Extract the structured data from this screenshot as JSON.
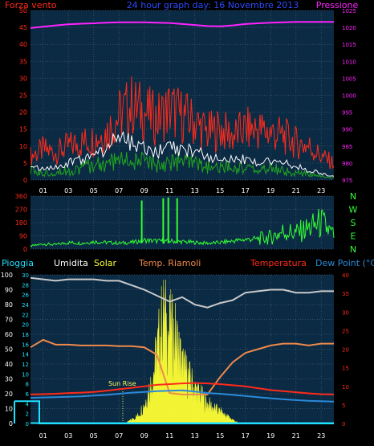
{
  "header": {
    "left_label": "Forza vento",
    "center_label": "24 hour graph day: 16 Novembre 2013",
    "right_label": "Pressione"
  },
  "colors": {
    "background": "#000000",
    "panel": "#0b2a44",
    "grid": "#3b4f63",
    "wind_speed": "#ff2a1a",
    "wind_gust_line": "#ffffff",
    "wind_avg": "#1fa51f",
    "pressure": "#ff22ff",
    "wind_dir": "#33ff33",
    "temperature": "#ff2a1a",
    "dew_point": "#2a8ad8",
    "humidity": "#c9c9c9",
    "room_temp": "#f08a4b",
    "rain": "#20e0ff",
    "solar": "#ffff33",
    "sunrise": "#ffff66",
    "left_axis_text": "#ff2a1a",
    "right_axis_text": "#ff22ff",
    "hour_text": "#ffffff"
  },
  "chart_data": [
    {
      "type": "line",
      "name": "wind",
      "title": "24 hour graph day: 16 Novembre 2013",
      "x_ticks": [
        "01",
        "03",
        "05",
        "07",
        "09",
        "11",
        "13",
        "15",
        "17",
        "19",
        "21",
        "23"
      ],
      "ylim_left": [
        0,
        50
      ],
      "left_ticks": [
        "0",
        "5",
        "10",
        "15",
        "20",
        "25",
        "30",
        "35",
        "40",
        "45",
        "50"
      ],
      "ylim_right": [
        975,
        1025
      ],
      "right_ticks": [
        "975",
        "980",
        "985",
        "990",
        "995",
        "1000",
        "1005",
        "1010",
        "1015",
        "1020",
        "1025"
      ],
      "series": [
        {
          "name": "Forza vento",
          "hours": [
            0,
            1,
            2,
            3,
            4,
            5,
            6,
            7,
            8,
            9,
            10,
            11,
            12,
            13,
            14,
            15,
            16,
            17,
            18,
            19,
            20,
            21,
            22,
            23,
            24
          ],
          "values": [
            7,
            9,
            8,
            10,
            11,
            12,
            14,
            19,
            22,
            20,
            18,
            21,
            19,
            17,
            14,
            15,
            13,
            15,
            15,
            14,
            13,
            11,
            10,
            7,
            5
          ]
        },
        {
          "name": "wind_gust_trace",
          "hours": [
            0,
            1,
            2,
            3,
            4,
            5,
            6,
            7,
            8,
            9,
            10,
            11,
            12,
            13,
            14,
            15,
            16,
            17,
            18,
            19,
            20,
            21,
            22,
            23,
            24
          ],
          "values": [
            5,
            3,
            4,
            5,
            6,
            7,
            9,
            13,
            11,
            9,
            8,
            10,
            9,
            9,
            7,
            6,
            6,
            6,
            5,
            6,
            5,
            4,
            3,
            2,
            1
          ]
        },
        {
          "name": "wind_avg",
          "hours": [
            0,
            1,
            2,
            3,
            4,
            5,
            6,
            7,
            8,
            9,
            10,
            11,
            12,
            13,
            14,
            15,
            16,
            17,
            18,
            19,
            20,
            21,
            22,
            23,
            24
          ],
          "values": [
            3,
            2,
            3,
            3,
            4,
            5,
            5,
            7,
            6,
            6,
            5,
            6,
            6,
            5,
            4,
            4,
            4,
            4,
            3,
            4,
            3,
            2,
            2,
            1,
            1
          ]
        },
        {
          "name": "Pressione",
          "hours": [
            0,
            1,
            2,
            3,
            4,
            5,
            6,
            7,
            8,
            9,
            10,
            11,
            12,
            13,
            14,
            15,
            16,
            17,
            18,
            19,
            20,
            21,
            22,
            23,
            24
          ],
          "values": [
            1019.8,
            1020.2,
            1020.6,
            1020.9,
            1021.1,
            1021.2,
            1021.4,
            1021.5,
            1021.5,
            1021.5,
            1021.4,
            1021.3,
            1021.0,
            1020.7,
            1020.4,
            1020.3,
            1020.6,
            1021.0,
            1021.2,
            1021.4,
            1021.5,
            1021.6,
            1021.6,
            1021.6,
            1021.6
          ]
        }
      ]
    },
    {
      "type": "line",
      "name": "wind_direction",
      "ylim": [
        0,
        360
      ],
      "left_ticks": [
        "0",
        "90",
        "180",
        "270",
        "360"
      ],
      "right_ticks": [
        "N",
        "W",
        "S",
        "E",
        "N"
      ],
      "series": [
        {
          "name": "direction",
          "hours": [
            0,
            1,
            2,
            3,
            4,
            5,
            6,
            7,
            8,
            9,
            10,
            11,
            12,
            13,
            14,
            15,
            16,
            17,
            18,
            19,
            20,
            21,
            22,
            23,
            24
          ],
          "values": [
            20,
            35,
            30,
            45,
            40,
            50,
            45,
            40,
            45,
            60,
            55,
            55,
            50,
            45,
            40,
            45,
            55,
            65,
            70,
            80,
            120,
            110,
            140,
            180,
            90
          ]
        }
      ],
      "spikes": [
        {
          "hour": 8.8,
          "value": 330
        },
        {
          "hour": 10.5,
          "value": 345
        },
        {
          "hour": 10.9,
          "value": 350
        },
        {
          "hour": 11.6,
          "value": 345
        }
      ]
    },
    {
      "type": "line",
      "name": "temperature_humidity_rain",
      "labels": {
        "rain": "Pioggia",
        "humidity": "Umidita",
        "solar": "Solar",
        "room_temp": "Temp. Riamoli",
        "temperature": "Temperatura",
        "dew_point": "Dew Point (°C)",
        "sunrise": "Sun Rise"
      },
      "x_ticks": [
        "01",
        "03",
        "05",
        "07",
        "09",
        "11",
        "13",
        "15",
        "17",
        "19",
        "21",
        "23"
      ],
      "ylim_left_outer": [
        0,
        100
      ],
      "left_outer_ticks": [
        "0",
        "10",
        "20",
        "30",
        "40",
        "50",
        "60",
        "70",
        "80",
        "90",
        "100"
      ],
      "ylim_left_inner": [
        0,
        30
      ],
      "left_inner_ticks": [
        "0",
        "2",
        "4",
        "6",
        "8",
        "10",
        "12",
        "14",
        "16",
        "18",
        "20",
        "22",
        "24",
        "26",
        "28",
        "30"
      ],
      "ylim_right": [
        0,
        40
      ],
      "right_ticks": [
        "0",
        "5",
        "10",
        "15",
        "20",
        "25",
        "30",
        "35",
        "40"
      ],
      "series": [
        {
          "name": "Umidita",
          "hours": [
            0,
            1,
            2,
            3,
            4,
            5,
            6,
            7,
            8,
            9,
            10,
            11,
            12,
            13,
            14,
            15,
            16,
            17,
            18,
            19,
            20,
            21,
            22,
            23,
            24
          ],
          "values": [
            98,
            97,
            96,
            97,
            97,
            97,
            96,
            96,
            93,
            90,
            86,
            82,
            85,
            80,
            78,
            81,
            83,
            88,
            89,
            90,
            90,
            88,
            88,
            89,
            89
          ]
        },
        {
          "name": "Temp. Riamoli",
          "hours": [
            0,
            1,
            2,
            3,
            4,
            5,
            6,
            7,
            8,
            9,
            10,
            11,
            12,
            13,
            14,
            15,
            16,
            17,
            18,
            19,
            20,
            21,
            22,
            23,
            24
          ],
          "values": [
            20.5,
            22.5,
            21.2,
            21.2,
            21.0,
            21.0,
            21.0,
            20.8,
            20.8,
            20.5,
            18.5,
            8.2,
            7.8,
            7.8,
            7.8,
            12.5,
            16.5,
            19.0,
            20.0,
            21.0,
            21.5,
            21.5,
            21.0,
            21.5,
            21.5
          ]
        },
        {
          "name": "Temperatura",
          "hours": [
            0,
            1,
            2,
            3,
            4,
            5,
            6,
            7,
            8,
            9,
            10,
            11,
            12,
            13,
            14,
            15,
            16,
            17,
            18,
            19,
            20,
            21,
            22,
            23,
            24
          ],
          "values": [
            7.8,
            7.9,
            8.0,
            8.2,
            8.3,
            8.5,
            8.8,
            9.2,
            9.6,
            10.0,
            10.4,
            10.6,
            10.8,
            10.9,
            10.8,
            10.6,
            10.3,
            10.0,
            9.5,
            9.0,
            8.7,
            8.4,
            8.1,
            7.9,
            7.8
          ]
        },
        {
          "name": "Dew Point (°C)",
          "hours": [
            0,
            1,
            2,
            3,
            4,
            5,
            6,
            7,
            8,
            9,
            10,
            11,
            12,
            13,
            14,
            15,
            16,
            17,
            18,
            19,
            20,
            21,
            22,
            23,
            24
          ],
          "values": [
            6.9,
            7.0,
            7.1,
            7.2,
            7.3,
            7.5,
            7.7,
            8.0,
            8.3,
            8.5,
            8.7,
            8.8,
            8.9,
            8.6,
            8.2,
            8.0,
            7.7,
            7.4,
            7.1,
            6.8,
            6.5,
            6.3,
            6.1,
            6.0,
            5.9
          ]
        },
        {
          "name": "Solar",
          "hours": [
            7.5,
            8,
            8.5,
            9,
            9.5,
            10,
            10.5,
            11,
            11.5,
            12,
            12.5,
            13,
            13.5,
            14,
            14.5,
            15,
            15.5,
            16,
            16.5
          ],
          "values": [
            0,
            1,
            2,
            5,
            10,
            18,
            28,
            24,
            22,
            15,
            12,
            9,
            7,
            5,
            4,
            3,
            2,
            1,
            0
          ]
        },
        {
          "name": "Pioggia",
          "hours": [
            0,
            0.7,
            0.7,
            0.8,
            24
          ],
          "values": [
            4.5,
            4.5,
            0,
            0,
            0
          ]
        }
      ],
      "sunrise_hour": 7.3
    }
  ]
}
